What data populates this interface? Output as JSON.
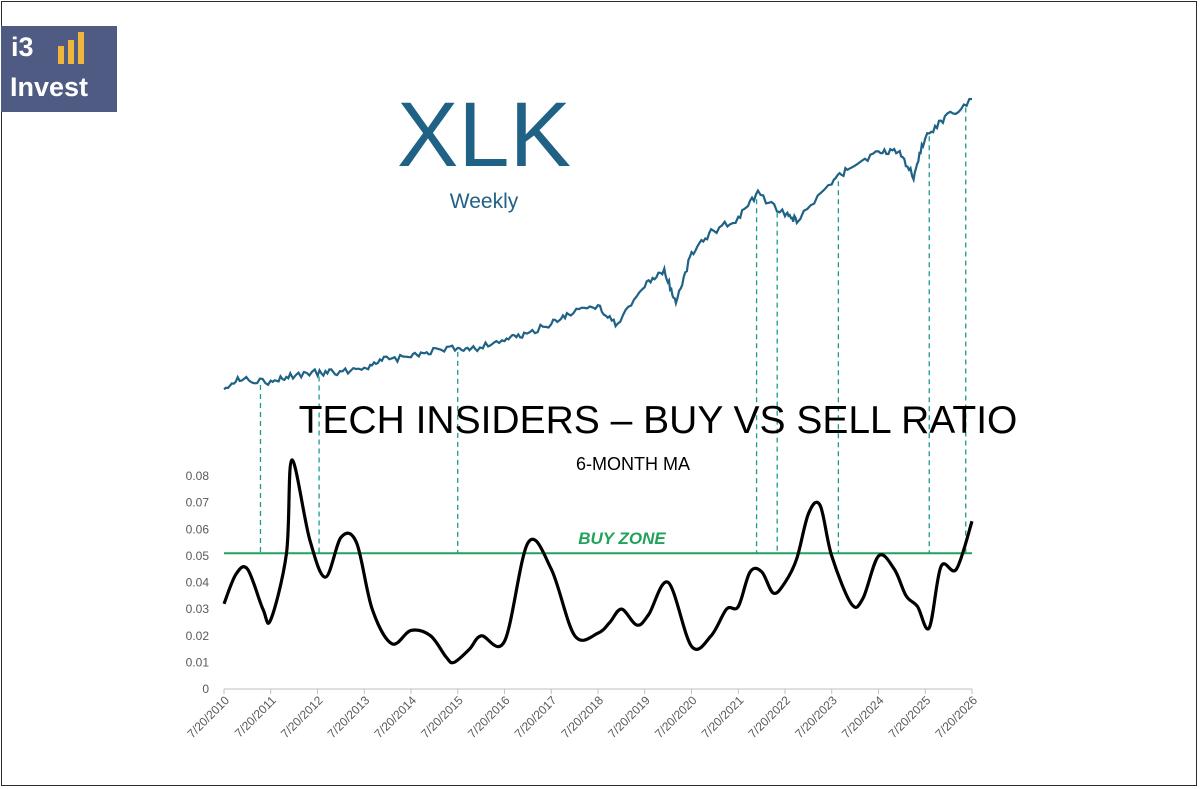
{
  "logo": {
    "line1": "i3",
    "line2": "Invest",
    "bar_color": "#f0b63c",
    "background": "#4f5b82"
  },
  "chart_data": [
    {
      "type": "line",
      "title": "XLK",
      "subtitle": "Weekly",
      "axes_visible": false,
      "color": "#1f6286",
      "x_range": [
        "2010-07-20",
        "2026-07-20"
      ],
      "series": [
        {
          "x": [
            "2010-07-20",
            "2010-12-20",
            "2011-07-20",
            "2011-12-20",
            "2012-07-20",
            "2012-12-20",
            "2013-07-20",
            "2013-12-20",
            "2014-07-20",
            "2014-12-20",
            "2015-07-20",
            "2015-12-20",
            "2016-07-20",
            "2016-12-20",
            "2017-07-20",
            "2017-12-20",
            "2018-07-20",
            "2018-12-20",
            "2019-07-20",
            "2019-12-20",
            "2020-03-20",
            "2020-07-20",
            "2020-12-20",
            "2021-07-20",
            "2021-12-20",
            "2022-07-20",
            "2022-10-20",
            "2023-07-20",
            "2023-12-20",
            "2024-07-20",
            "2024-12-20",
            "2025-04-20",
            "2025-07-20",
            "2025-12-20",
            "2026-07-20"
          ],
          "values": [
            22,
            27,
            24,
            28,
            30,
            30,
            33,
            37,
            39,
            42,
            44,
            44,
            49,
            51,
            58,
            64,
            68,
            57,
            80,
            88,
            70,
            98,
            110,
            118,
            132,
            120,
            117,
            138,
            148,
            155,
            157,
            142,
            165,
            175,
            186
          ]
        }
      ]
    },
    {
      "type": "line",
      "title": "TECH INSIDERS – BUY VS SELL RATIO",
      "subtitle": "6-MONTH MA",
      "ylim": [
        0,
        0.08
      ],
      "yticks": [
        "0",
        "0.01",
        "0.02",
        "0.03",
        "0.04",
        "0.05",
        "0.06",
        "0.07",
        "0.08"
      ],
      "xticks": [
        "7/20/2010",
        "7/20/2011",
        "7/20/2012",
        "7/20/2013",
        "7/20/2014",
        "7/20/2015",
        "7/20/2016",
        "7/20/2017",
        "7/20/2018",
        "7/20/2019",
        "7/20/2020",
        "7/20/2021",
        "7/20/2022",
        "7/20/2023",
        "7/20/2024",
        "7/20/2025",
        "7/20/2026"
      ],
      "grid": false,
      "annotations": [
        {
          "text": "BUY ZONE",
          "y": 0.051,
          "color": "#21a25a"
        }
      ],
      "series": [
        {
          "color": "#000000",
          "x": [
            "2010-07-20",
            "2010-10-20",
            "2011-01-20",
            "2011-05-20",
            "2011-07-20",
            "2011-11-20",
            "2012-01-01",
            "2012-05-20",
            "2012-09-20",
            "2013-01-20",
            "2013-05-20",
            "2013-09-20",
            "2014-02-20",
            "2014-07-20",
            "2014-12-20",
            "2015-04-20",
            "2015-06-20",
            "2015-10-20",
            "2016-01-20",
            "2016-07-20",
            "2017-01-20",
            "2017-07-20",
            "2018-01-20",
            "2018-07-20",
            "2018-10-20",
            "2019-01-20",
            "2019-05-20",
            "2019-08-20",
            "2020-01-20",
            "2020-07-20",
            "2020-12-20",
            "2021-04-20",
            "2021-07-20",
            "2021-10-20",
            "2022-01-20",
            "2022-04-20",
            "2022-07-20",
            "2022-10-20",
            "2023-01-20",
            "2023-04-20",
            "2023-07-20",
            "2023-12-20",
            "2024-03-20",
            "2024-07-20",
            "2024-11-20",
            "2025-02-20",
            "2025-05-20",
            "2025-08-20",
            "2025-11-20",
            "2026-03-20",
            "2026-07-20"
          ],
          "values": [
            0.032,
            0.043,
            0.045,
            0.03,
            0.026,
            0.051,
            0.086,
            0.056,
            0.042,
            0.057,
            0.055,
            0.03,
            0.017,
            0.022,
            0.02,
            0.012,
            0.01,
            0.015,
            0.02,
            0.018,
            0.055,
            0.045,
            0.02,
            0.021,
            0.025,
            0.03,
            0.024,
            0.028,
            0.04,
            0.016,
            0.02,
            0.03,
            0.031,
            0.044,
            0.044,
            0.036,
            0.04,
            0.049,
            0.066,
            0.069,
            0.05,
            0.032,
            0.034,
            0.05,
            0.045,
            0.035,
            0.031,
            0.023,
            0.046,
            0.045,
            0.063
          ]
        }
      ]
    }
  ],
  "markers": [
    "2011-05-01",
    "2012-08-01",
    "2015-07-20",
    "2021-12-10",
    "2022-05-20",
    "2023-09-10",
    "2025-08-20",
    "2026-06-01"
  ]
}
